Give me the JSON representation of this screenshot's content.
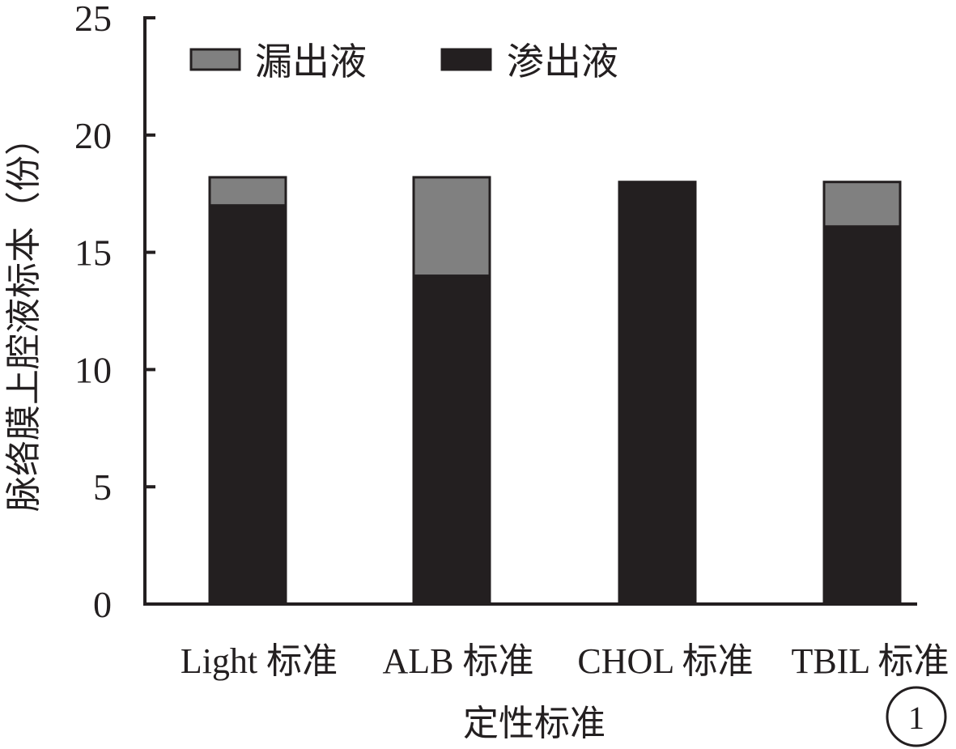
{
  "chart_data": {
    "type": "bar",
    "stacked": true,
    "categories": [
      "Light 标准",
      "ALB 标准",
      "CHOL 标准",
      "TBIL 标准"
    ],
    "series": [
      {
        "name": "渗出液",
        "values": [
          17,
          14,
          18,
          16.1
        ],
        "color": "#231f20"
      },
      {
        "name": "漏出液",
        "values": [
          1.2,
          4.2,
          0,
          1.9
        ],
        "color": "#808080"
      }
    ],
    "xlabel": "定性标准",
    "ylabel": "脉络膜上腔液标本（份）",
    "ylim": [
      0,
      25
    ],
    "yticks": [
      0,
      5,
      10,
      15,
      20,
      25
    ],
    "grid": false,
    "legend_position": "top-left",
    "legend_order": [
      "漏出液",
      "渗出液"
    ]
  },
  "figure_label": "1"
}
